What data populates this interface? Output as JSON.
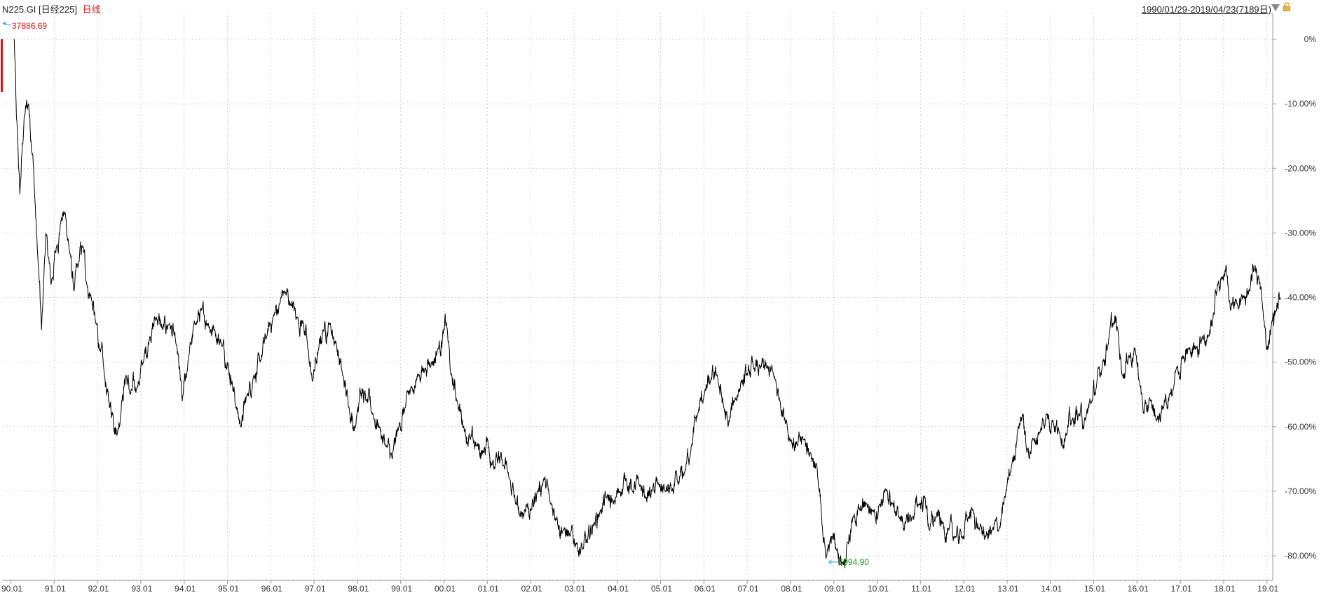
{
  "header": {
    "symbol": "N225.GI",
    "name": "[日经225]",
    "period": "日线",
    "range": "1990/01/29-2019/04/23(7189日)"
  },
  "annotations": {
    "high_label": "37886.69",
    "low_label": "6994.90"
  },
  "colors": {
    "line": "#000000",
    "grid": "#c8c8c8",
    "high": "#e01010",
    "low": "#1a9a1a",
    "arrow": "#2aa0c8"
  },
  "chart_data": {
    "type": "line",
    "series": [
      {
        "values_unit": "percent change from 1990/01/29",
        "points": [
          [
            "1990.07",
            0
          ],
          [
            "1990.12",
            -12
          ],
          [
            "1990.20",
            -24
          ],
          [
            "1990.30",
            -12
          ],
          [
            "1990.40",
            -10
          ],
          [
            "1990.50",
            -18
          ],
          [
            "1990.60",
            -32
          ],
          [
            "1990.70",
            -45
          ],
          [
            "1990.80",
            -30
          ],
          [
            "1990.92",
            -38
          ],
          [
            "1991.05",
            -32
          ],
          [
            "1991.15",
            -28
          ],
          [
            "1991.25",
            -27
          ],
          [
            "1991.35",
            -33
          ],
          [
            "1991.45",
            -39
          ],
          [
            "1991.55",
            -35
          ],
          [
            "1991.65",
            -32
          ],
          [
            "1991.75",
            -38
          ],
          [
            "1991.85",
            -40
          ],
          [
            "1991.95",
            -44
          ],
          [
            "1992.05",
            -48
          ],
          [
            "1992.15",
            -52
          ],
          [
            "1992.25",
            -56
          ],
          [
            "1992.35",
            -58
          ],
          [
            "1992.45",
            -61
          ],
          [
            "1992.55",
            -56
          ],
          [
            "1992.65",
            -52
          ],
          [
            "1992.75",
            -55
          ],
          [
            "1992.90",
            -54
          ],
          [
            "1993.05",
            -50
          ],
          [
            "1993.20",
            -46
          ],
          [
            "1993.35",
            -43
          ],
          [
            "1993.50",
            -45
          ],
          [
            "1993.65",
            -44
          ],
          [
            "1993.80",
            -47
          ],
          [
            "1993.95",
            -56
          ],
          [
            "1994.10",
            -49
          ],
          [
            "1994.25",
            -44
          ],
          [
            "1994.40",
            -42
          ],
          [
            "1994.55",
            -44
          ],
          [
            "1994.70",
            -45
          ],
          [
            "1994.85",
            -47
          ],
          [
            "1995.00",
            -50
          ],
          [
            "1995.10",
            -53
          ],
          [
            "1995.20",
            -57
          ],
          [
            "1995.30",
            -60
          ],
          [
            "1995.45",
            -55
          ],
          [
            "1995.60",
            -52
          ],
          [
            "1995.75",
            -50
          ],
          [
            "1995.90",
            -46
          ],
          [
            "1996.05",
            -43
          ],
          [
            "1996.20",
            -41
          ],
          [
            "1996.30",
            -39
          ],
          [
            "1996.45",
            -41
          ],
          [
            "1996.60",
            -43
          ],
          [
            "1996.75",
            -44
          ],
          [
            "1996.85",
            -48
          ],
          [
            "1996.95",
            -53
          ],
          [
            "1997.10",
            -48
          ],
          [
            "1997.20",
            -45
          ],
          [
            "1997.35",
            -44
          ],
          [
            "1997.50",
            -47
          ],
          [
            "1997.65",
            -52
          ],
          [
            "1997.80",
            -57
          ],
          [
            "1997.95",
            -60
          ],
          [
            "1998.05",
            -54
          ],
          [
            "1998.20",
            -56
          ],
          [
            "1998.35",
            -58
          ],
          [
            "1998.50",
            -60
          ],
          [
            "1998.65",
            -63
          ],
          [
            "1998.80",
            -65
          ],
          [
            "1998.95",
            -60
          ],
          [
            "1999.10",
            -57
          ],
          [
            "1999.25",
            -54
          ],
          [
            "1999.40",
            -52
          ],
          [
            "1999.55",
            -51
          ],
          [
            "1999.70",
            -50
          ],
          [
            "1999.85",
            -48
          ],
          [
            "2000.00",
            -45
          ],
          [
            "2000.05",
            -44
          ],
          [
            "2000.15",
            -52
          ],
          [
            "2000.30",
            -56
          ],
          [
            "2000.45",
            -60
          ],
          [
            "2000.60",
            -62
          ],
          [
            "2000.75",
            -63
          ],
          [
            "2000.90",
            -64
          ],
          [
            "2001.00",
            -62
          ],
          [
            "2001.10",
            -66
          ],
          [
            "2001.20",
            -64
          ],
          [
            "2001.35",
            -66
          ],
          [
            "2001.50",
            -68
          ],
          [
            "2001.65",
            -72
          ],
          [
            "2001.75",
            -74
          ],
          [
            "2001.90",
            -72
          ],
          [
            "2002.00",
            -73
          ],
          [
            "2002.15",
            -70
          ],
          [
            "2002.30",
            -68
          ],
          [
            "2002.45",
            -72
          ],
          [
            "2002.60",
            -74
          ],
          [
            "2002.75",
            -76
          ],
          [
            "2002.90",
            -77
          ],
          [
            "2003.05",
            -78
          ],
          [
            "2003.20",
            -79
          ],
          [
            "2003.30",
            -78
          ],
          [
            "2003.45",
            -75
          ],
          [
            "2003.60",
            -73
          ],
          [
            "2003.75",
            -71
          ],
          [
            "2003.90",
            -72
          ],
          [
            "2004.05",
            -70
          ],
          [
            "2004.20",
            -68
          ],
          [
            "2004.35",
            -70
          ],
          [
            "2004.50",
            -69
          ],
          [
            "2004.65",
            -71
          ],
          [
            "2004.80",
            -70
          ],
          [
            "2004.95",
            -69
          ],
          [
            "2005.10",
            -70
          ],
          [
            "2005.25",
            -70
          ],
          [
            "2005.40",
            -69
          ],
          [
            "2005.55",
            -67
          ],
          [
            "2005.70",
            -63
          ],
          [
            "2005.85",
            -58
          ],
          [
            "2006.00",
            -55
          ],
          [
            "2006.15",
            -53
          ],
          [
            "2006.30",
            -52
          ],
          [
            "2006.45",
            -57
          ],
          [
            "2006.55",
            -60
          ],
          [
            "2006.70",
            -56
          ],
          [
            "2006.85",
            -53
          ],
          [
            "2007.00",
            -52
          ],
          [
            "2007.15",
            -51
          ],
          [
            "2007.30",
            -51
          ],
          [
            "2007.45",
            -51
          ],
          [
            "2007.60",
            -52
          ],
          [
            "2007.75",
            -56
          ],
          [
            "2007.90",
            -59
          ],
          [
            "2008.00",
            -62
          ],
          [
            "2008.15",
            -63
          ],
          [
            "2008.30",
            -62
          ],
          [
            "2008.45",
            -64
          ],
          [
            "2008.60",
            -66
          ],
          [
            "2008.75",
            -78
          ],
          [
            "2008.85",
            -79
          ],
          [
            "2008.95",
            -77
          ],
          [
            "2009.05",
            -79
          ],
          [
            "2009.20",
            -81
          ],
          [
            "2009.30",
            -78
          ],
          [
            "2009.45",
            -74
          ],
          [
            "2009.60",
            -73
          ],
          [
            "2009.75",
            -72
          ],
          [
            "2009.90",
            -73
          ],
          [
            "2010.05",
            -72
          ],
          [
            "2010.20",
            -70
          ],
          [
            "2010.35",
            -72
          ],
          [
            "2010.50",
            -74
          ],
          [
            "2010.65",
            -75
          ],
          [
            "2010.80",
            -74
          ],
          [
            "2010.95",
            -72
          ],
          [
            "2011.10",
            -71
          ],
          [
            "2011.20",
            -76
          ],
          [
            "2011.35",
            -74
          ],
          [
            "2011.50",
            -75
          ],
          [
            "2011.65",
            -76
          ],
          [
            "2011.80",
            -77
          ],
          [
            "2011.95",
            -77
          ],
          [
            "2012.10",
            -74
          ],
          [
            "2012.20",
            -73
          ],
          [
            "2012.35",
            -76
          ],
          [
            "2012.50",
            -77
          ],
          [
            "2012.65",
            -76
          ],
          [
            "2012.80",
            -76
          ],
          [
            "2012.95",
            -71
          ],
          [
            "2013.10",
            -66
          ],
          [
            "2013.25",
            -60
          ],
          [
            "2013.35",
            -58
          ],
          [
            "2013.45",
            -64
          ],
          [
            "2013.60",
            -62
          ],
          [
            "2013.75",
            -61
          ],
          [
            "2013.90",
            -58
          ],
          [
            "2014.05",
            -59
          ],
          [
            "2014.20",
            -61
          ],
          [
            "2014.35",
            -61
          ],
          [
            "2014.50",
            -59
          ],
          [
            "2014.65",
            -58
          ],
          [
            "2014.80",
            -59
          ],
          [
            "2014.95",
            -56
          ],
          [
            "2015.05",
            -54
          ],
          [
            "2015.20",
            -50
          ],
          [
            "2015.35",
            -46
          ],
          [
            "2015.45",
            -44
          ],
          [
            "2015.55",
            -45
          ],
          [
            "2015.65",
            -52
          ],
          [
            "2015.80",
            -49
          ],
          [
            "2015.95",
            -48
          ],
          [
            "2016.05",
            -53
          ],
          [
            "2016.15",
            -58
          ],
          [
            "2016.30",
            -56
          ],
          [
            "2016.45",
            -59
          ],
          [
            "2016.60",
            -57
          ],
          [
            "2016.75",
            -55
          ],
          [
            "2016.90",
            -51
          ],
          [
            "2017.05",
            -49
          ],
          [
            "2017.20",
            -48
          ],
          [
            "2017.35",
            -48
          ],
          [
            "2017.50",
            -46
          ],
          [
            "2017.65",
            -46
          ],
          [
            "2017.75",
            -43
          ],
          [
            "2017.85",
            -38
          ],
          [
            "2017.95",
            -37
          ],
          [
            "2018.05",
            -35
          ],
          [
            "2018.15",
            -42
          ],
          [
            "2018.30",
            -41
          ],
          [
            "2018.45",
            -40
          ],
          [
            "2018.60",
            -39
          ],
          [
            "2018.72",
            -35
          ],
          [
            "2018.80",
            -37
          ],
          [
            "2018.90",
            -42
          ],
          [
            "2018.98",
            -48
          ],
          [
            "2019.10",
            -44
          ],
          [
            "2019.20",
            -42
          ],
          [
            "2019.31",
            -40
          ]
        ]
      }
    ],
    "x_ticks": [
      "90.01",
      "91.01",
      "92.01",
      "93.01",
      "94.01",
      "95.01",
      "96.01",
      "97.01",
      "98.01",
      "99.01",
      "00.01",
      "01.01",
      "02.01",
      "03.01",
      "04.01",
      "05.01",
      "06.01",
      "07.01",
      "08.01",
      "09.01",
      "10.01",
      "11.01",
      "12.01",
      "13.01",
      "14.01",
      "15.01",
      "16.01",
      "17.01",
      "18.01",
      "19.01"
    ],
    "y_ticks": [
      "0%",
      "-10.00%",
      "-20.00%",
      "-30.00%",
      "-40.00%",
      "-50.00%",
      "-60.00%",
      "-70.00%",
      "-80.00%"
    ],
    "y_tick_values": [
      0,
      -10,
      -20,
      -30,
      -40,
      -50,
      -60,
      -70,
      -80
    ],
    "x_range": [
      "1990/01/29",
      "2019/04/23"
    ],
    "ylim": [
      -84,
      5
    ],
    "grid": true,
    "legend": "none",
    "annotations": [
      {
        "label": "37886.69",
        "x": "1990/01/29",
        "y": 0
      },
      {
        "label": "6994.90",
        "x": "2009/03",
        "y": -81
      }
    ]
  }
}
